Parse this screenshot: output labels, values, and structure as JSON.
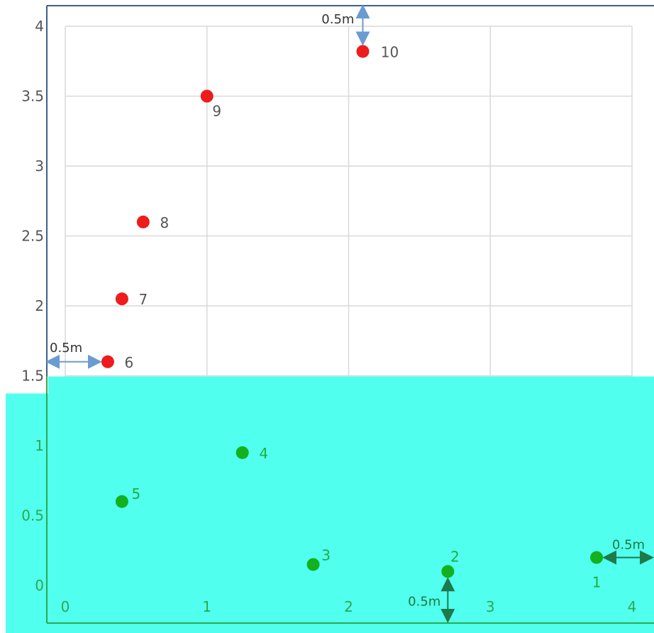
{
  "chart_data": {
    "type": "scatter",
    "title": "",
    "xlabel": "",
    "ylabel": "",
    "xlim": [
      0,
      4
    ],
    "ylim": [
      0,
      4
    ],
    "grid": true,
    "x_ticks": [
      "0",
      "1",
      "2",
      "3",
      "4"
    ],
    "y_ticks": [
      "0",
      "0.5",
      "1",
      "1.5",
      "2",
      "2.5",
      "3",
      "3.5",
      "4"
    ],
    "series": [
      {
        "color": "#ee1c1c",
        "points": [
          {
            "id": "6",
            "x": 0.3,
            "y": 1.6
          },
          {
            "id": "7",
            "x": 0.4,
            "y": 2.05
          },
          {
            "id": "8",
            "x": 0.55,
            "y": 2.6
          },
          {
            "id": "9",
            "x": 1.0,
            "y": 3.5
          },
          {
            "id": "10",
            "x": 2.1,
            "y": 3.82
          }
        ]
      },
      {
        "color": "#13b11e",
        "points": [
          {
            "id": "1",
            "x": 3.75,
            "y": 0.2
          },
          {
            "id": "2",
            "x": 2.7,
            "y": 0.1
          },
          {
            "id": "3",
            "x": 1.75,
            "y": 0.15
          },
          {
            "id": "4",
            "x": 1.25,
            "y": 0.95
          },
          {
            "id": "5",
            "x": 0.4,
            "y": 0.6
          }
        ]
      }
    ],
    "annotations": [
      {
        "text": "0.5m",
        "near": "10",
        "direction": "vertical"
      },
      {
        "text": "0.5m",
        "near": "6",
        "direction": "horizontal"
      },
      {
        "text": "0.5m",
        "near": "2",
        "direction": "vertical"
      },
      {
        "text": "0.5m",
        "near": "1",
        "direction": "horizontal"
      }
    ],
    "highlight": {
      "color": "#4effef",
      "y_from": 0,
      "y_to": 1.5
    }
  }
}
